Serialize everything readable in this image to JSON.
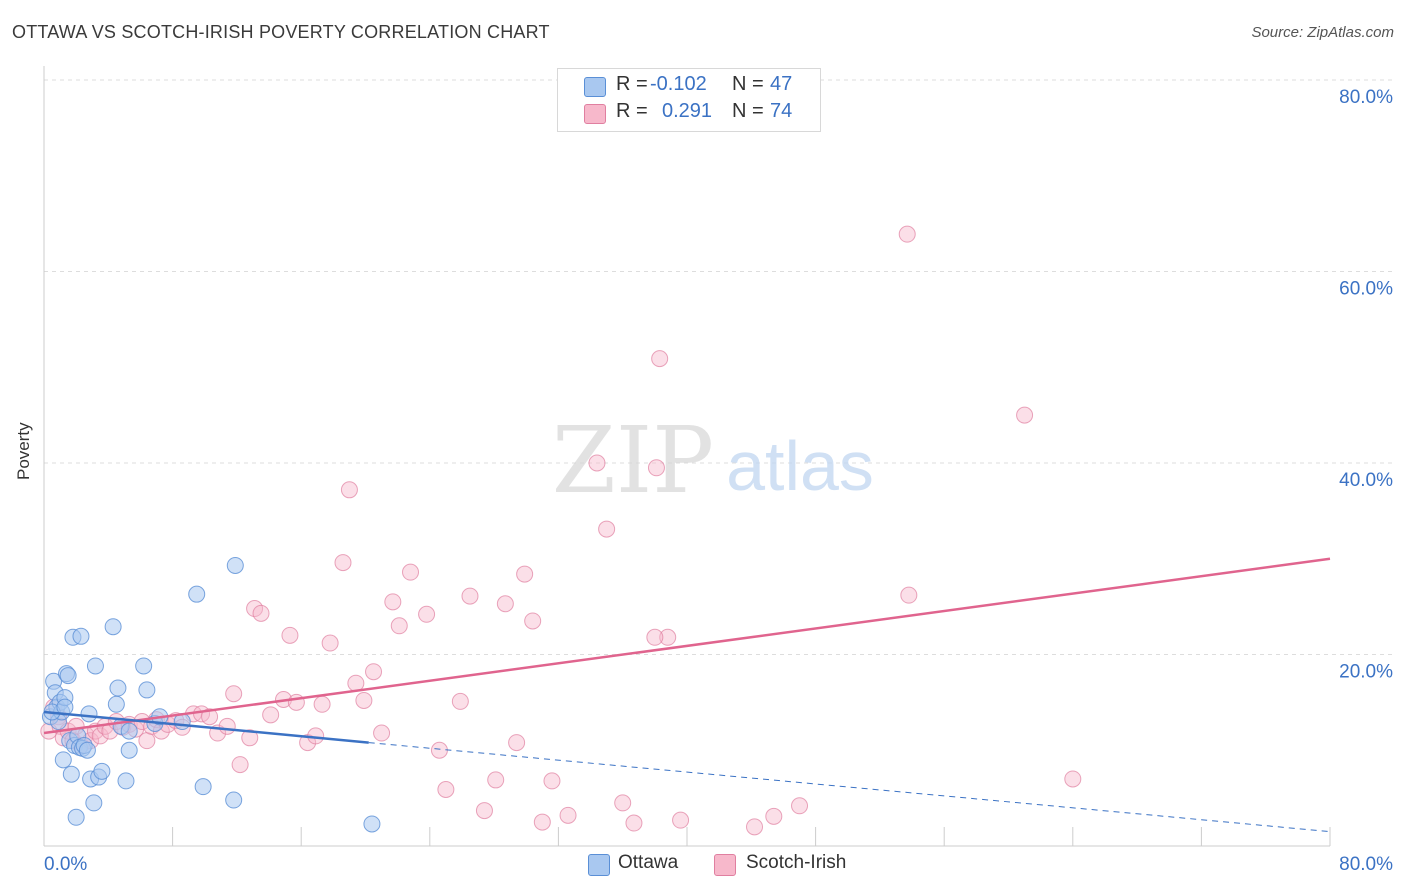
{
  "title": "OTTAWA VS SCOTCH-IRISH POVERTY CORRELATION CHART",
  "source": "Source: ZipAtlas.com",
  "watermark": {
    "zip": "ZIP",
    "atlas": "atlas"
  },
  "legend": {
    "ottawa": {
      "r_label": "R =",
      "r_value": "-0.102",
      "n_label": "N =",
      "n_value": "47"
    },
    "scotch": {
      "r_label": "R =",
      "r_value": "0.291",
      "n_label": "N =",
      "n_value": "74"
    }
  },
  "bottom_legend": {
    "ottawa": "Ottawa",
    "scotch": "Scotch-Irish"
  },
  "colors": {
    "ottawa_fill": "#a9c8f0",
    "ottawa_stroke": "#5a8fd6",
    "ottawa_line": "#3b72c4",
    "scotch_fill": "#f7b8cb",
    "scotch_stroke": "#e07fa0",
    "scotch_line": "#e0648e",
    "axis_label": "#3b72c4",
    "grid": "#dddddd"
  },
  "chart_data": {
    "type": "scatter",
    "title": "OTTAWA VS SCOTCH-IRISH POVERTY CORRELATION CHART",
    "xlabel": "",
    "ylabel": "Poverty",
    "xlim": [
      0,
      80
    ],
    "ylim": [
      0,
      80
    ],
    "x_tick_labels": [
      "0.0%",
      "80.0%"
    ],
    "y_ticks": [
      20,
      40,
      60,
      80
    ],
    "y_tick_labels": [
      "20.0%",
      "40.0%",
      "60.0%",
      "80.0%"
    ],
    "grid": true,
    "legend_position": "top-center",
    "series": [
      {
        "name": "Ottawa",
        "r": -0.102,
        "n": 47,
        "trend": {
          "x": [
            0,
            20.2
          ],
          "y": [
            14.0,
            10.8
          ],
          "dashed_to": [
            80,
            1.5
          ]
        },
        "points": [
          [
            0.4,
            13.5
          ],
          [
            0.6,
            17.2
          ],
          [
            0.7,
            16.0
          ],
          [
            0.8,
            14.5
          ],
          [
            0.9,
            13.0
          ],
          [
            1.0,
            15.0
          ],
          [
            1.1,
            14.0
          ],
          [
            1.2,
            9.0
          ],
          [
            1.3,
            15.5
          ],
          [
            1.4,
            18.0
          ],
          [
            1.5,
            17.8
          ],
          [
            1.6,
            11.0
          ],
          [
            1.7,
            7.5
          ],
          [
            1.8,
            21.8
          ],
          [
            1.9,
            10.5
          ],
          [
            2.0,
            3.0
          ],
          [
            2.1,
            11.5
          ],
          [
            2.2,
            10.3
          ],
          [
            2.3,
            21.9
          ],
          [
            2.4,
            10.2
          ],
          [
            2.5,
            10.5
          ],
          [
            2.7,
            10.0
          ],
          [
            2.8,
            13.8
          ],
          [
            2.9,
            7.0
          ],
          [
            3.1,
            4.5
          ],
          [
            3.2,
            18.8
          ],
          [
            3.4,
            7.2
          ],
          [
            3.6,
            7.8
          ],
          [
            4.3,
            22.9
          ],
          [
            4.5,
            14.8
          ],
          [
            4.6,
            16.5
          ],
          [
            4.8,
            12.5
          ],
          [
            5.1,
            6.8
          ],
          [
            5.3,
            10.0
          ],
          [
            5.3,
            12.0
          ],
          [
            6.2,
            18.8
          ],
          [
            6.4,
            16.3
          ],
          [
            6.9,
            12.8
          ],
          [
            7.2,
            13.5
          ],
          [
            8.6,
            13.0
          ],
          [
            9.5,
            26.3
          ],
          [
            9.9,
            6.2
          ],
          [
            11.8,
            4.8
          ],
          [
            11.9,
            29.3
          ],
          [
            20.4,
            2.3
          ],
          [
            0.5,
            14.0
          ],
          [
            1.3,
            14.5
          ]
        ]
      },
      {
        "name": "Scotch-Irish",
        "r": 0.291,
        "n": 74,
        "trend": {
          "x": [
            0,
            80
          ],
          "y": [
            11.8,
            30.0
          ]
        },
        "points": [
          [
            0.3,
            12.0
          ],
          [
            0.6,
            14.5
          ],
          [
            0.9,
            13.5
          ],
          [
            1.0,
            12.5
          ],
          [
            1.2,
            11.3
          ],
          [
            1.5,
            12.0
          ],
          [
            1.8,
            11.0
          ],
          [
            2.0,
            12.5
          ],
          [
            2.3,
            10.5
          ],
          [
            2.6,
            11.6
          ],
          [
            2.9,
            11.0
          ],
          [
            3.2,
            12.0
          ],
          [
            3.5,
            11.5
          ],
          [
            3.8,
            12.5
          ],
          [
            4.1,
            12.0
          ],
          [
            4.5,
            13.0
          ],
          [
            4.9,
            12.4
          ],
          [
            5.3,
            12.7
          ],
          [
            5.7,
            12.2
          ],
          [
            6.1,
            13.0
          ],
          [
            6.4,
            11.0
          ],
          [
            6.7,
            12.5
          ],
          [
            7.0,
            13.2
          ],
          [
            7.3,
            12.0
          ],
          [
            7.7,
            12.7
          ],
          [
            8.2,
            13.1
          ],
          [
            8.6,
            12.4
          ],
          [
            9.3,
            13.8
          ],
          [
            9.8,
            13.8
          ],
          [
            10.3,
            13.5
          ],
          [
            10.8,
            11.8
          ],
          [
            11.4,
            12.5
          ],
          [
            11.8,
            15.9
          ],
          [
            12.2,
            8.5
          ],
          [
            12.8,
            11.3
          ],
          [
            13.1,
            24.8
          ],
          [
            13.5,
            24.3
          ],
          [
            14.1,
            13.7
          ],
          [
            14.9,
            15.3
          ],
          [
            15.3,
            22.0
          ],
          [
            15.7,
            15.0
          ],
          [
            16.4,
            10.8
          ],
          [
            16.9,
            11.5
          ],
          [
            17.3,
            14.8
          ],
          [
            17.8,
            21.2
          ],
          [
            18.6,
            29.6
          ],
          [
            19.0,
            37.2
          ],
          [
            19.4,
            17.0
          ],
          [
            19.9,
            15.2
          ],
          [
            20.5,
            18.2
          ],
          [
            21.0,
            11.8
          ],
          [
            21.7,
            25.5
          ],
          [
            22.1,
            23.0
          ],
          [
            22.8,
            28.6
          ],
          [
            23.8,
            24.2
          ],
          [
            24.6,
            10.0
          ],
          [
            25.0,
            5.9
          ],
          [
            25.9,
            15.1
          ],
          [
            26.5,
            26.1
          ],
          [
            27.4,
            3.7
          ],
          [
            28.1,
            6.9
          ],
          [
            28.7,
            25.3
          ],
          [
            29.4,
            10.8
          ],
          [
            29.9,
            28.4
          ],
          [
            30.4,
            23.5
          ],
          [
            31.0,
            2.5
          ],
          [
            31.6,
            6.8
          ],
          [
            32.6,
            3.2
          ],
          [
            34.4,
            40.0
          ],
          [
            35.0,
            33.1
          ],
          [
            36.0,
            4.5
          ],
          [
            36.7,
            2.4
          ],
          [
            38.1,
            39.5
          ],
          [
            38.8,
            21.8
          ]
        ],
        "extra_points": [
          [
            38.0,
            21.8
          ],
          [
            39.6,
            2.7
          ],
          [
            45.4,
            3.1
          ],
          [
            44.2,
            2.0
          ],
          [
            47.0,
            4.2
          ],
          [
            53.8,
            26.2
          ],
          [
            53.7,
            63.9
          ],
          [
            38.3,
            50.9
          ],
          [
            61.0,
            45.0
          ],
          [
            64.0,
            7.0
          ]
        ]
      }
    ]
  }
}
